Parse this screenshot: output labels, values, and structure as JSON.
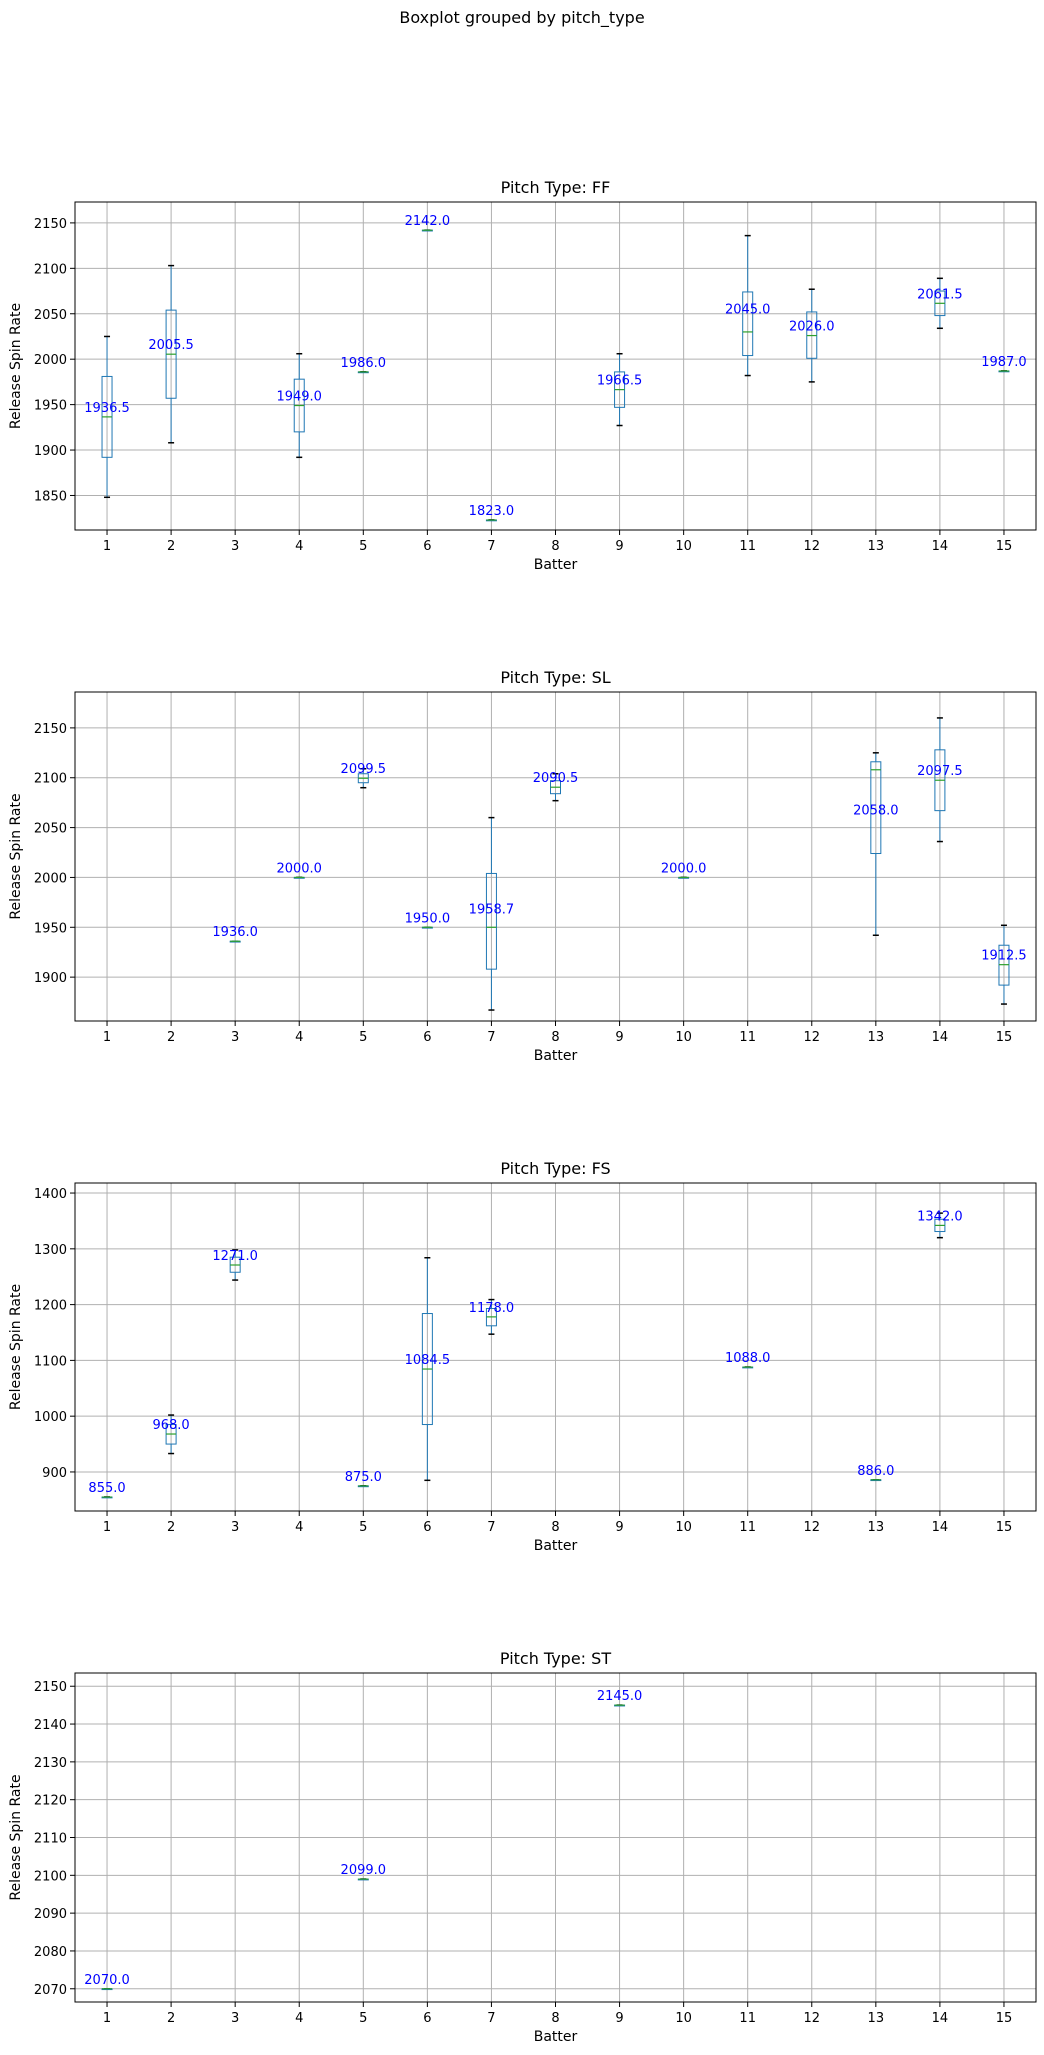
{
  "suptitle": "Boxplot grouped by pitch_type",
  "chart_data": [
    {
      "type": "box",
      "title": "Pitch Type: FF",
      "xlabel": "Batter",
      "ylabel": "Release Spin Rate",
      "categories": [
        "1",
        "2",
        "3",
        "4",
        "5",
        "6",
        "7",
        "8",
        "9",
        "10",
        "11",
        "12",
        "13",
        "14",
        "15"
      ],
      "ylim": [
        1812,
        2173
      ],
      "yticks": [
        1850,
        1900,
        1950,
        2000,
        2050,
        2100,
        2150
      ],
      "grid": true,
      "boxes": [
        {
          "batter": 1,
          "whislo": 1848,
          "q1": 1892,
          "med": 1936.5,
          "q3": 1981,
          "whishi": 2025,
          "label": "1936.5"
        },
        {
          "batter": 2,
          "whislo": 1908,
          "q1": 1957,
          "med": 2005.5,
          "q3": 2054,
          "whishi": 2103,
          "label": "2005.5"
        },
        {
          "batter": 4,
          "whislo": 1892,
          "q1": 1920,
          "med": 1949.0,
          "q3": 1978,
          "whishi": 2006,
          "label": "1949.0"
        },
        {
          "batter": 5,
          "whislo": 1986,
          "q1": 1986,
          "med": 1986.0,
          "q3": 1986,
          "whishi": 1986,
          "label": "1986.0"
        },
        {
          "batter": 6,
          "whislo": 2142,
          "q1": 2142,
          "med": 2142.0,
          "q3": 2142,
          "whishi": 2142,
          "label": "2142.0"
        },
        {
          "batter": 7,
          "whislo": 1823,
          "q1": 1823,
          "med": 1823.0,
          "q3": 1823,
          "whishi": 1823,
          "label": "1823.0"
        },
        {
          "batter": 9,
          "whislo": 1927,
          "q1": 1947,
          "med": 1966.5,
          "q3": 1986,
          "whishi": 2006,
          "label": "1966.5"
        },
        {
          "batter": 11,
          "whislo": 1982,
          "q1": 2004,
          "med": 2030.0,
          "q3": 2074,
          "whishi": 2136,
          "label": "2045.0"
        },
        {
          "batter": 12,
          "whislo": 1975,
          "q1": 2001,
          "med": 2026.0,
          "q3": 2052,
          "whishi": 2077,
          "label": "2026.0"
        },
        {
          "batter": 14,
          "whislo": 2034,
          "q1": 2048,
          "med": 2061.5,
          "q3": 2075,
          "whishi": 2089,
          "label": "2061.5"
        },
        {
          "batter": 15,
          "whislo": 1987,
          "q1": 1987,
          "med": 1987.0,
          "q3": 1987,
          "whishi": 1987,
          "label": "1987.0"
        }
      ]
    },
    {
      "type": "box",
      "title": "Pitch Type: SL",
      "xlabel": "Batter",
      "ylabel": "Release Spin Rate",
      "categories": [
        "1",
        "2",
        "3",
        "4",
        "5",
        "6",
        "7",
        "8",
        "9",
        "10",
        "11",
        "12",
        "13",
        "14",
        "15"
      ],
      "ylim": [
        1856,
        2186
      ],
      "yticks": [
        1900,
        1950,
        2000,
        2050,
        2100,
        2150
      ],
      "grid": true,
      "boxes": [
        {
          "batter": 3,
          "whislo": 1936,
          "q1": 1936,
          "med": 1936.0,
          "q3": 1936,
          "whishi": 1936,
          "label": "1936.0"
        },
        {
          "batter": 4,
          "whislo": 2000,
          "q1": 2000,
          "med": 2000.0,
          "q3": 2000,
          "whishi": 2000,
          "label": "2000.0"
        },
        {
          "batter": 5,
          "whislo": 2090,
          "q1": 2095,
          "med": 2099.5,
          "q3": 2104,
          "whishi": 2109,
          "label": "2099.5"
        },
        {
          "batter": 6,
          "whislo": 1950,
          "q1": 1950,
          "med": 1950.0,
          "q3": 1950,
          "whishi": 1950,
          "label": "1950.0"
        },
        {
          "batter": 7,
          "whislo": 1867,
          "q1": 1908,
          "med": 1950.0,
          "q3": 2004,
          "whishi": 2060,
          "label": "1958.7"
        },
        {
          "batter": 8,
          "whislo": 2077,
          "q1": 2084,
          "med": 2090.5,
          "q3": 2097,
          "whishi": 2104,
          "label": "2090.5"
        },
        {
          "batter": 10,
          "whislo": 2000,
          "q1": 2000,
          "med": 2000.0,
          "q3": 2000,
          "whishi": 2000,
          "label": "2000.0"
        },
        {
          "batter": 13,
          "whislo": 1942,
          "q1": 2024,
          "med": 2108.0,
          "q3": 2116,
          "whishi": 2125,
          "label": "2058.0"
        },
        {
          "batter": 14,
          "whislo": 2036,
          "q1": 2067,
          "med": 2097.5,
          "q3": 2128,
          "whishi": 2160,
          "label": "2097.5"
        },
        {
          "batter": 15,
          "whislo": 1873,
          "q1": 1892,
          "med": 1912.5,
          "q3": 1932,
          "whishi": 1952,
          "label": "1912.5"
        }
      ]
    },
    {
      "type": "box",
      "title": "Pitch Type: FS",
      "xlabel": "Batter",
      "ylabel": "Release Spin Rate",
      "categories": [
        "1",
        "2",
        "3",
        "4",
        "5",
        "6",
        "7",
        "8",
        "9",
        "10",
        "11",
        "12",
        "13",
        "14",
        "15"
      ],
      "ylim": [
        830,
        1418
      ],
      "yticks": [
        900,
        1000,
        1100,
        1200,
        1300,
        1400
      ],
      "grid": true,
      "boxes": [
        {
          "batter": 1,
          "whislo": 855,
          "q1": 855,
          "med": 855.0,
          "q3": 855,
          "whishi": 855,
          "label": "855.0"
        },
        {
          "batter": 2,
          "whislo": 933,
          "q1": 950,
          "med": 968.0,
          "q3": 985,
          "whishi": 1002,
          "label": "968.0"
        },
        {
          "batter": 3,
          "whislo": 1244,
          "q1": 1258,
          "med": 1271.0,
          "q3": 1285,
          "whishi": 1298,
          "label": "1271.0"
        },
        {
          "batter": 5,
          "whislo": 875,
          "q1": 875,
          "med": 875.0,
          "q3": 875,
          "whishi": 875,
          "label": "875.0"
        },
        {
          "batter": 6,
          "whislo": 885,
          "q1": 985,
          "med": 1084.5,
          "q3": 1184,
          "whishi": 1284,
          "label": "1084.5"
        },
        {
          "batter": 7,
          "whislo": 1147,
          "q1": 1162,
          "med": 1178.0,
          "q3": 1193,
          "whishi": 1209,
          "label": "1178.0"
        },
        {
          "batter": 11,
          "whislo": 1088,
          "q1": 1088,
          "med": 1088.0,
          "q3": 1088,
          "whishi": 1088,
          "label": "1088.0"
        },
        {
          "batter": 13,
          "whislo": 886,
          "q1": 886,
          "med": 886.0,
          "q3": 886,
          "whishi": 886,
          "label": "886.0"
        },
        {
          "batter": 14,
          "whislo": 1320,
          "q1": 1331,
          "med": 1342.0,
          "q3": 1353,
          "whishi": 1364,
          "label": "1342.0"
        }
      ]
    },
    {
      "type": "box",
      "title": "Pitch Type: ST",
      "xlabel": "Batter",
      "ylabel": "Release Spin Rate",
      "categories": [
        "1",
        "2",
        "3",
        "4",
        "5",
        "6",
        "7",
        "8",
        "9",
        "10",
        "11",
        "12",
        "13",
        "14",
        "15"
      ],
      "ylim": [
        2066.5,
        2153.5
      ],
      "yticks": [
        2070,
        2080,
        2090,
        2100,
        2110,
        2120,
        2130,
        2140,
        2150
      ],
      "grid": true,
      "boxes": [
        {
          "batter": 1,
          "whislo": 2070,
          "q1": 2070,
          "med": 2070.0,
          "q3": 2070,
          "whishi": 2070,
          "label": "2070.0"
        },
        {
          "batter": 5,
          "whislo": 2099,
          "q1": 2099,
          "med": 2099.0,
          "q3": 2099,
          "whishi": 2099,
          "label": "2099.0"
        },
        {
          "batter": 9,
          "whislo": 2145,
          "q1": 2145,
          "med": 2145.0,
          "q3": 2145,
          "whishi": 2145,
          "label": "2145.0"
        }
      ]
    }
  ],
  "colors": {
    "box": "#1f77b4",
    "median": "#2ca02c",
    "whisker_cap": "#000000",
    "label": "#0000ff",
    "grid": "#b0b0b0",
    "axes": "#000000"
  }
}
